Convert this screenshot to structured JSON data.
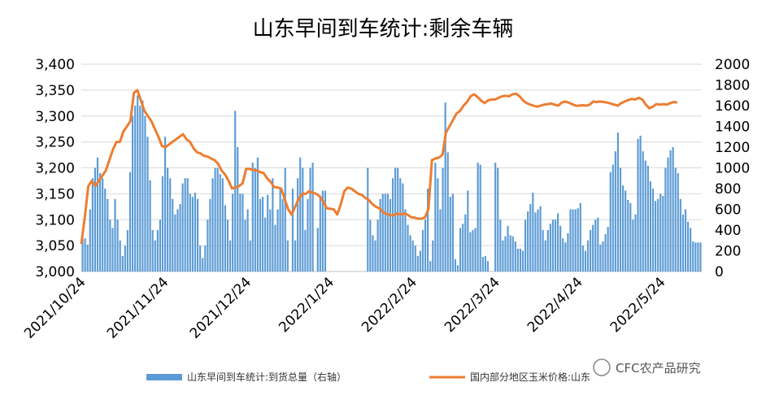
{
  "title": "山东早间到车统计:剩余车辆",
  "watermark": "CFC农产品研究",
  "colors": {
    "bar": "#5b9bd5",
    "line": "#ed7d31",
    "grid": "#d9d9d9"
  },
  "chart_data": {
    "type": "bar",
    "left_axis": {
      "ticks": [
        "3,000",
        "3,050",
        "3,100",
        "3,150",
        "3,200",
        "3,250",
        "3,300",
        "3,350",
        "3,400"
      ],
      "min": 3000,
      "max": 3400
    },
    "right_axis": {
      "ticks": [
        "0",
        "200",
        "400",
        "600",
        "800",
        "1000",
        "1200",
        "1400",
        "1600",
        "1800",
        "2000"
      ],
      "min": 0,
      "max": 2000
    },
    "x_ticks": [
      "2021/10/24",
      "2021/11/24",
      "2021/12/24",
      "2022/1/24",
      "2022/2/24",
      "2022/3/24",
      "2022/4/24",
      "2022/5/24"
    ],
    "series": [
      {
        "name": "山东早间到车统计:到货总量（右轴）",
        "axis": "right",
        "values": [
          320,
          320,
          260,
          600,
          900,
          1000,
          1100,
          950,
          900,
          800,
          700,
          500,
          420,
          700,
          500,
          300,
          150,
          250,
          400,
          960,
          1500,
          1600,
          1700,
          1600,
          1650,
          1500,
          1300,
          880,
          400,
          300,
          400,
          500,
          920,
          1300,
          1000,
          900,
          700,
          550,
          600,
          650,
          850,
          900,
          900,
          750,
          720,
          760,
          700,
          250,
          130,
          250,
          500,
          700,
          900,
          1000,
          1000,
          940,
          900,
          640,
          500,
          300,
          750,
          1550,
          1200,
          750,
          750,
          500,
          600,
          300,
          1050,
          1000,
          1100,
          700,
          720,
          520,
          740,
          600,
          900,
          450,
          600,
          800,
          700,
          1000,
          300,
          0,
          800,
          300,
          900,
          1100,
          1000,
          400,
          700,
          1000,
          1050,
          0,
          420,
          730,
          780,
          780,
          0,
          0,
          0,
          0,
          0,
          0,
          0,
          0,
          0,
          0,
          0,
          0,
          0,
          0,
          0,
          0,
          1000,
          500,
          350,
          300,
          500,
          700,
          750,
          750,
          750,
          700,
          900,
          1000,
          1000,
          900,
          850,
          600,
          450,
          350,
          300,
          250,
          150,
          200,
          400,
          500,
          800,
          100,
          300,
          1050,
          900,
          600,
          1000,
          1630,
          1150,
          720,
          750,
          120,
          60,
          420,
          460,
          550,
          780,
          380,
          400,
          420,
          1050,
          1030,
          140,
          150,
          100,
          0,
          0,
          1050,
          1000,
          500,
          300,
          340,
          440,
          350,
          340,
          290,
          220,
          220,
          200,
          500,
          580,
          650,
          760,
          570,
          600,
          630,
          400,
          300,
          400,
          460,
          500,
          500,
          560,
          440,
          320,
          280,
          370,
          600,
          600,
          600,
          610,
          660,
          250,
          200,
          300,
          400,
          450,
          500,
          520,
          260,
          290,
          360,
          430,
          960,
          1030,
          1160,
          1340,
          1000,
          830,
          780,
          690,
          660,
          500,
          550,
          1280,
          1310,
          1160,
          1070,
          1020,
          870,
          800,
          680,
          700,
          750,
          730,
          1000,
          1100,
          1170,
          1200,
          1000,
          950,
          700,
          550,
          600,
          480,
          420,
          290,
          280,
          280,
          280
        ],
        "range": "2021/10/24 – 2022/5/24"
      },
      {
        "name": "国内部分地区玉米价格:山东",
        "axis": "left",
        "type": "line",
        "values": [
          3053,
          3105,
          3165,
          3175,
          3165,
          3175,
          3185,
          3195,
          3215,
          3235,
          3250,
          3250,
          3270,
          3280,
          3290,
          3345,
          3350,
          3330,
          3310,
          3300,
          3290,
          3275,
          3260,
          3242,
          3240,
          3245,
          3250,
          3255,
          3260,
          3265,
          3255,
          3250,
          3238,
          3230,
          3228,
          3223,
          3222,
          3218,
          3215,
          3208,
          3195,
          3187,
          3175,
          3160,
          3162,
          3165,
          3170,
          3198,
          3198,
          3196,
          3195,
          3192,
          3190,
          3180,
          3173,
          3163,
          3162,
          3160,
          3140,
          3120,
          3110,
          3125,
          3140,
          3150,
          3150,
          3155,
          3152,
          3150,
          3145,
          3135,
          3122,
          3121,
          3120,
          3110,
          3130,
          3155,
          3162,
          3160,
          3155,
          3150,
          3148,
          3142,
          3138,
          3130,
          3125,
          3122,
          3115,
          3111,
          3109,
          3108,
          3112,
          3110,
          3112,
          3110,
          3105,
          3104,
          3102,
          3102,
          3104,
          3121,
          3215,
          3218,
          3220,
          3225,
          3268,
          3280,
          3292,
          3305,
          3310,
          3320,
          3327,
          3338,
          3342,
          3337,
          3330,
          3325,
          3330,
          3332,
          3332,
          3335,
          3338,
          3339,
          3338,
          3342,
          3343,
          3338,
          3330,
          3325,
          3322,
          3320,
          3318,
          3320,
          3322,
          3323,
          3324,
          3322,
          3320,
          3326,
          3328,
          3326,
          3323,
          3320,
          3320,
          3321,
          3320,
          3322,
          3328,
          3327,
          3328,
          3327,
          3326,
          3324,
          3322,
          3320,
          3325,
          3328,
          3331,
          3333,
          3332,
          3335,
          3332,
          3322,
          3315,
          3318,
          3323,
          3322,
          3323,
          3322,
          3325,
          3327,
          3326
        ],
        "note": ""
      }
    ]
  },
  "legend": {
    "bar_label": "山东早间到车统计:到货总量（右轴）",
    "line_label": "国内部分地区玉米价格:山东"
  }
}
